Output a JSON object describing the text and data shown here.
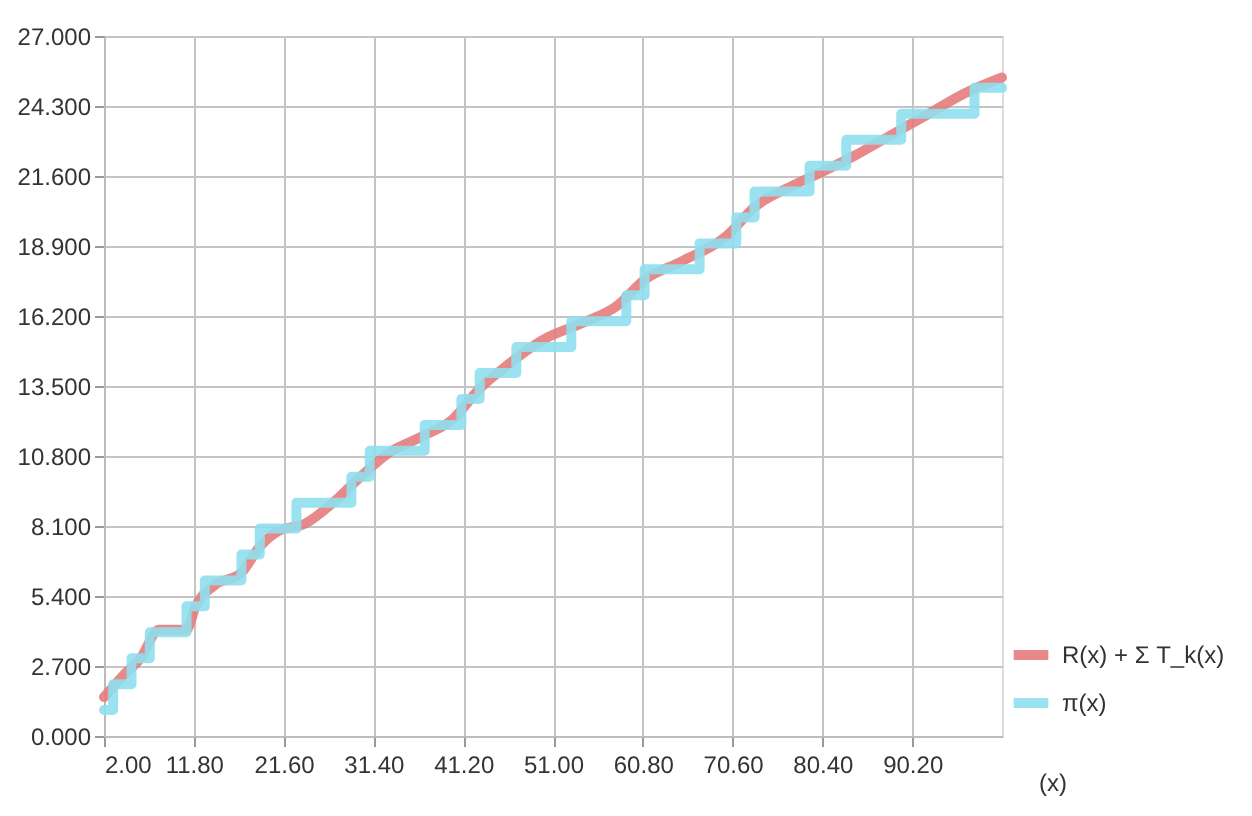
{
  "chart_data": {
    "type": "line",
    "xlabel": "(x)",
    "xlim": [
      2,
      100
    ],
    "xticks": [
      {
        "value": 2,
        "label": "2.00"
      },
      {
        "value": 11.8,
        "label": "11.80"
      },
      {
        "value": 21.6,
        "label": "21.60"
      },
      {
        "value": 31.4,
        "label": "31.40"
      },
      {
        "value": 41.2,
        "label": "41.20"
      },
      {
        "value": 51,
        "label": "51.00"
      },
      {
        "value": 60.8,
        "label": "60.80"
      },
      {
        "value": 70.6,
        "label": "70.60"
      },
      {
        "value": 80.4,
        "label": "80.40"
      },
      {
        "value": 90.2,
        "label": "90.20"
      }
    ],
    "ylim": [
      0,
      27
    ],
    "yticks": [
      {
        "value": 0,
        "label": "0.000"
      },
      {
        "value": 2.7,
        "label": "2.700"
      },
      {
        "value": 5.4,
        "label": "5.400"
      },
      {
        "value": 8.1,
        "label": "8.100"
      },
      {
        "value": 10.8,
        "label": "10.800"
      },
      {
        "value": 13.5,
        "label": "13.500"
      },
      {
        "value": 16.2,
        "label": "16.200"
      },
      {
        "value": 18.9,
        "label": "18.900"
      },
      {
        "value": 21.6,
        "label": "21.600"
      },
      {
        "value": 24.3,
        "label": "24.300"
      },
      {
        "value": 27,
        "label": "27.000"
      }
    ],
    "grid": true,
    "legend": "bottom right",
    "marker": "none",
    "line_style": "solid",
    "series": [
      {
        "name": "R(x) + Σ T_k(x)",
        "type": "line",
        "color": "#e67c7c",
        "x": [
          2,
          3,
          4,
          6,
          8,
          11,
          12,
          14,
          17,
          19,
          21,
          24,
          27,
          30,
          33,
          37,
          40,
          43,
          46,
          50,
          54,
          58,
          61,
          65,
          70,
          73,
          77,
          80,
          84,
          88,
          92,
          96,
          100
        ],
        "values": [
          1.5,
          1.9,
          2.3,
          3.0,
          4.1,
          4.1,
          5.0,
          5.8,
          6.3,
          7.3,
          7.9,
          8.2,
          9.0,
          10.0,
          10.9,
          11.6,
          12.2,
          13.4,
          14.3,
          15.3,
          15.9,
          16.6,
          17.6,
          18.3,
          19.3,
          20.4,
          21.2,
          21.7,
          22.4,
          23.2,
          24.0,
          24.8,
          25.4
        ]
      },
      {
        "name": "π(x)",
        "type": "step",
        "color": "#8fdfee",
        "x": [
          2,
          3,
          5,
          7,
          11,
          13,
          17,
          19,
          23,
          29,
          31,
          37,
          41,
          43,
          47,
          53,
          59,
          61,
          67,
          71,
          73,
          79,
          83,
          89,
          97,
          100
        ],
        "values": [
          1,
          2,
          3,
          4,
          5,
          6,
          7,
          8,
          9,
          10,
          11,
          12,
          13,
          14,
          15,
          16,
          17,
          18,
          19,
          20,
          21,
          22,
          23,
          24,
          25,
          25
        ]
      }
    ]
  }
}
